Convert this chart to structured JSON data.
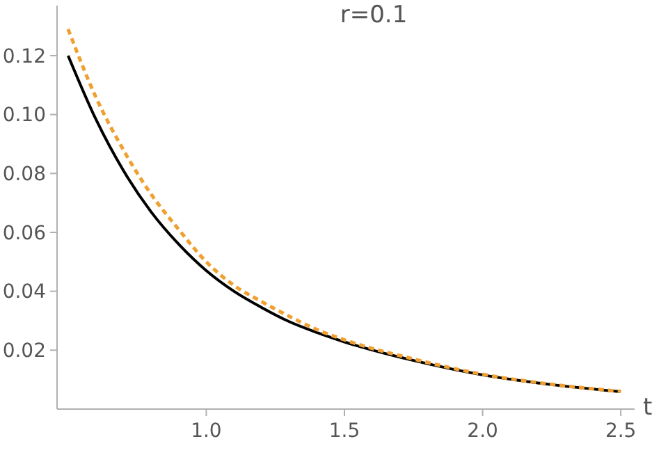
{
  "chart_data": {
    "type": "line",
    "title": "r=0.1",
    "xlabel": "t",
    "x": [
      0.5,
      0.6,
      0.7,
      0.8,
      0.9,
      1.0,
      1.1,
      1.2,
      1.3,
      1.4,
      1.5,
      1.75,
      2.0,
      2.25,
      2.5
    ],
    "series": [
      {
        "color": "#000000",
        "line_style": "solid",
        "values": [
          0.12,
          0.0985,
          0.081,
          0.067,
          0.056,
          0.047,
          0.04,
          0.0345,
          0.0297,
          0.026,
          0.0228,
          0.0165,
          0.0116,
          0.0083,
          0.0059
        ]
      },
      {
        "color": "#f0a030",
        "line_style": "dashed",
        "values": [
          0.129,
          0.106,
          0.088,
          0.073,
          0.061,
          0.05,
          0.042,
          0.0365,
          0.0315,
          0.027,
          0.0235,
          0.017,
          0.0118,
          0.0084,
          0.006
        ]
      }
    ],
    "xlim": [
      0.46,
      2.55
    ],
    "ylim": [
      0,
      0.137
    ],
    "xticks": [
      {
        "value": 1,
        "label": "1.0"
      },
      {
        "value": 1.5,
        "label": "1.5"
      },
      {
        "value": 2,
        "label": "2.0"
      },
      {
        "value": 2.5,
        "label": "2.5"
      }
    ],
    "yticks": [
      {
        "value": 0.02,
        "label": "0.02"
      },
      {
        "value": 0.04,
        "label": "0.04"
      },
      {
        "value": 0.06,
        "label": "0.06"
      },
      {
        "value": 0.08,
        "label": "0.08"
      },
      {
        "value": 0.1,
        "label": "0.10"
      },
      {
        "value": 0.12,
        "label": "0.12"
      }
    ],
    "grid": false
  }
}
